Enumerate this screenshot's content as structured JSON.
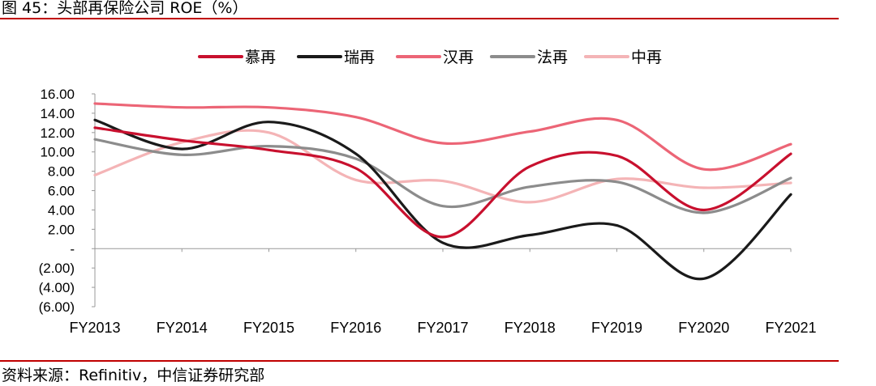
{
  "header": {
    "title": "图 45：头部再保险公司 ROE（%）"
  },
  "footer": {
    "source": "资料来源：Refinitiv，中信证券研究部"
  },
  "chart_data": {
    "type": "line",
    "title": "",
    "xlabel": "",
    "ylabel": "",
    "categories": [
      "FY2013",
      "FY2014",
      "FY2015",
      "FY2016",
      "FY2017",
      "FY2018",
      "FY2019",
      "FY2020",
      "FY2021"
    ],
    "ylim": [
      -6,
      16
    ],
    "y_ticks": [
      16,
      14,
      12,
      10,
      8,
      6,
      4,
      2,
      0,
      -2,
      -4,
      -6
    ],
    "y_tick_labels": [
      "16.00",
      "14.00",
      "12.00",
      "10.00",
      "8.00",
      "6.00",
      "4.00",
      "2.00",
      "-",
      "(2.00)",
      "(4.00)",
      "(6.00)"
    ],
    "grid": false,
    "legend_position": "top",
    "series": [
      {
        "name": "慕再",
        "color": "#c8102e",
        "values": [
          12.5,
          11.2,
          10.2,
          8.3,
          1.2,
          8.5,
          9.6,
          4.0,
          9.8
        ]
      },
      {
        "name": "瑞再",
        "color": "#1a1a1a",
        "values": [
          13.3,
          10.3,
          13.1,
          9.8,
          0.6,
          1.4,
          2.4,
          -3.1,
          5.6
        ]
      },
      {
        "name": "汉再",
        "color": "#ec6576",
        "values": [
          15.0,
          14.6,
          14.6,
          13.6,
          10.9,
          12.1,
          13.3,
          8.2,
          10.8
        ]
      },
      {
        "name": "法再",
        "color": "#8c8c8c",
        "values": [
          11.3,
          9.7,
          10.6,
          9.3,
          4.4,
          6.4,
          6.9,
          3.7,
          7.3
        ]
      },
      {
        "name": "中再",
        "color": "#f4b4b6",
        "values": [
          7.6,
          11.0,
          12.0,
          7.1,
          7.0,
          4.8,
          7.2,
          6.3,
          6.8
        ]
      }
    ]
  }
}
